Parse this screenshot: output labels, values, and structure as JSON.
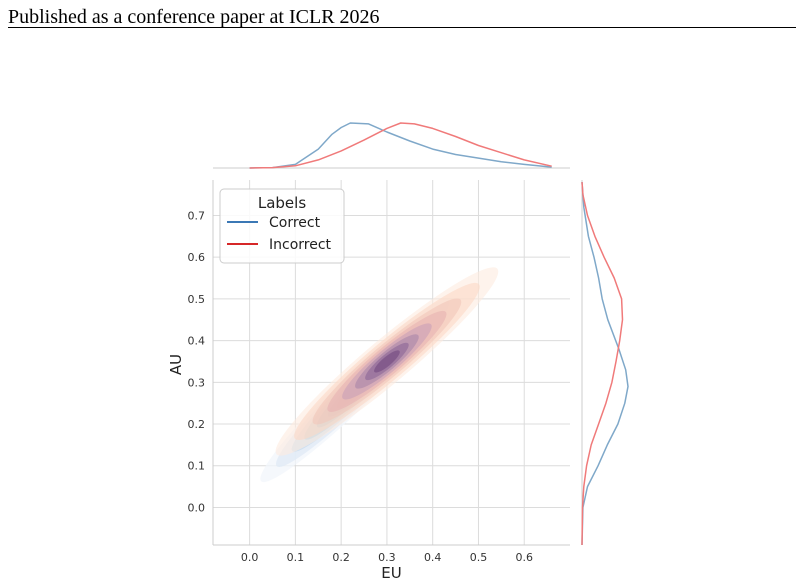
{
  "page": {
    "header": "Published as a conference paper at ICLR 2026"
  },
  "chart_data": {
    "type": "kde-joint",
    "title": "",
    "xlabel": "EU",
    "ylabel": "AU",
    "xlim": [
      -0.08,
      0.7
    ],
    "ylim": [
      -0.09,
      0.785
    ],
    "xticks": [
      "0.0",
      "0.1",
      "0.2",
      "0.3",
      "0.4",
      "0.5",
      "0.6"
    ],
    "yticks": [
      "0.0",
      "0.1",
      "0.2",
      "0.3",
      "0.4",
      "0.5",
      "0.6",
      "0.7"
    ],
    "grid": true,
    "legend": {
      "title": "Labels",
      "placement": "top-left",
      "entries": [
        "Correct",
        "Incorrect"
      ]
    },
    "series": [
      {
        "name": "Correct",
        "color": "#3b78b5",
        "palette": [
          "#f2f6fb",
          "#dfe9f5",
          "#c6dbef",
          "#9ecae1",
          "#6baed6",
          "#4a8cc2",
          "#3a70a8",
          "#2e5a8c"
        ],
        "center": [
          0.23,
          0.28
        ],
        "kde_x": [
          [
            0.0,
            0.0
          ],
          [
            0.05,
            0.01
          ],
          [
            0.1,
            0.08
          ],
          [
            0.15,
            0.42
          ],
          [
            0.18,
            0.75
          ],
          [
            0.2,
            0.9
          ],
          [
            0.22,
            1.0
          ],
          [
            0.26,
            0.98
          ],
          [
            0.3,
            0.8
          ],
          [
            0.35,
            0.6
          ],
          [
            0.4,
            0.42
          ],
          [
            0.45,
            0.3
          ],
          [
            0.5,
            0.22
          ],
          [
            0.55,
            0.14
          ],
          [
            0.6,
            0.08
          ],
          [
            0.66,
            0.02
          ]
        ],
        "kde_y": [
          [
            -0.09,
            0.0
          ],
          [
            0.0,
            0.02
          ],
          [
            0.05,
            0.12
          ],
          [
            0.1,
            0.35
          ],
          [
            0.15,
            0.55
          ],
          [
            0.2,
            0.78
          ],
          [
            0.25,
            0.93
          ],
          [
            0.29,
            1.0
          ],
          [
            0.33,
            0.95
          ],
          [
            0.38,
            0.8
          ],
          [
            0.45,
            0.56
          ],
          [
            0.5,
            0.44
          ],
          [
            0.55,
            0.36
          ],
          [
            0.6,
            0.26
          ],
          [
            0.65,
            0.14
          ],
          [
            0.72,
            0.04
          ],
          [
            0.78,
            0.0
          ]
        ]
      },
      {
        "name": "Incorrect",
        "color": "#d62728",
        "palette": [
          "#fdebe0",
          "#fbd9c6",
          "#f2c6b9",
          "#e7b3b3",
          "#c9a0b8",
          "#a886a8",
          "#8a6596",
          "#72487e"
        ],
        "center": [
          0.3,
          0.35
        ],
        "kde_x": [
          [
            0.0,
            0.0
          ],
          [
            0.05,
            0.01
          ],
          [
            0.1,
            0.05
          ],
          [
            0.15,
            0.18
          ],
          [
            0.2,
            0.38
          ],
          [
            0.25,
            0.62
          ],
          [
            0.3,
            0.88
          ],
          [
            0.33,
            1.0
          ],
          [
            0.36,
            0.98
          ],
          [
            0.4,
            0.88
          ],
          [
            0.45,
            0.7
          ],
          [
            0.5,
            0.5
          ],
          [
            0.55,
            0.34
          ],
          [
            0.6,
            0.18
          ],
          [
            0.66,
            0.04
          ]
        ],
        "kde_y": [
          [
            -0.09,
            0.0
          ],
          [
            0.0,
            0.01
          ],
          [
            0.05,
            0.04
          ],
          [
            0.1,
            0.1
          ],
          [
            0.15,
            0.2
          ],
          [
            0.2,
            0.36
          ],
          [
            0.25,
            0.52
          ],
          [
            0.3,
            0.65
          ],
          [
            0.35,
            0.74
          ],
          [
            0.4,
            0.82
          ],
          [
            0.45,
            0.88
          ],
          [
            0.5,
            0.86
          ],
          [
            0.55,
            0.7
          ],
          [
            0.6,
            0.48
          ],
          [
            0.65,
            0.28
          ],
          [
            0.7,
            0.12
          ],
          [
            0.75,
            0.02
          ],
          [
            0.78,
            0.0
          ]
        ]
      }
    ]
  }
}
